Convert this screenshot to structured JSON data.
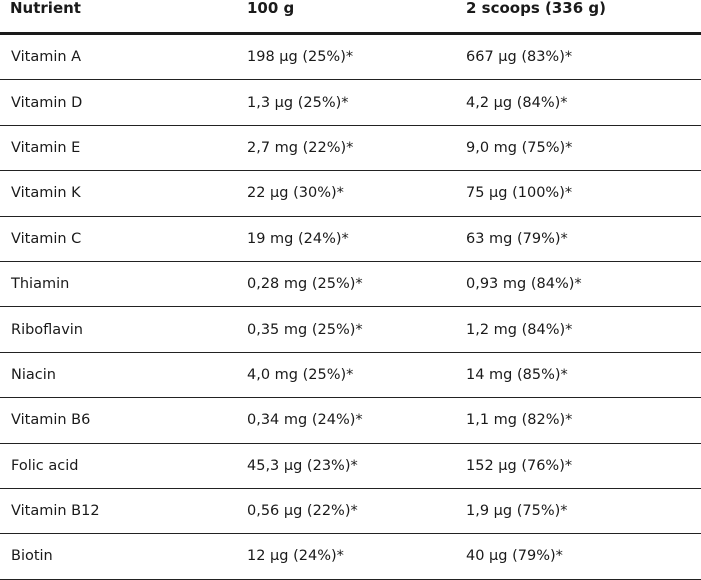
{
  "table": {
    "headers": [
      "Nutrient",
      "100 g",
      "2 scoops (336 g)"
    ],
    "rows": [
      [
        "Vitamin A",
        "198 µg (25%)*",
        "667 µg (83%)*"
      ],
      [
        "Vitamin D",
        "1,3 µg (25%)*",
        "4,2 µg (84%)*"
      ],
      [
        "Vitamin E",
        "2,7 mg (22%)*",
        "9,0 mg (75%)*"
      ],
      [
        "Vitamin K",
        "22 µg (30%)*",
        "75 µg (100%)*"
      ],
      [
        "Vitamin C",
        "19 mg (24%)*",
        "63 mg (79%)*"
      ],
      [
        "Thiamin",
        "0,28 mg (25%)*",
        "0,93 mg (84%)*"
      ],
      [
        "Riboflavin",
        "0,35 mg (25%)*",
        "1,2 mg (84%)*"
      ],
      [
        "Niacin",
        "4,0 mg (25%)*",
        "14 mg (85%)*"
      ],
      [
        "Vitamin B6",
        "0,34 mg (24%)*",
        "1,1 mg (82%)*"
      ],
      [
        "Folic acid",
        "45,3 µg (23%)*",
        "152 µg (76%)*"
      ],
      [
        "Vitamin B12",
        "0,56 µg (22%)*",
        "1,9 µg (75%)*"
      ],
      [
        "Biotin",
        "12 µg (24%)*",
        "40 µg (79%)*"
      ]
    ]
  }
}
